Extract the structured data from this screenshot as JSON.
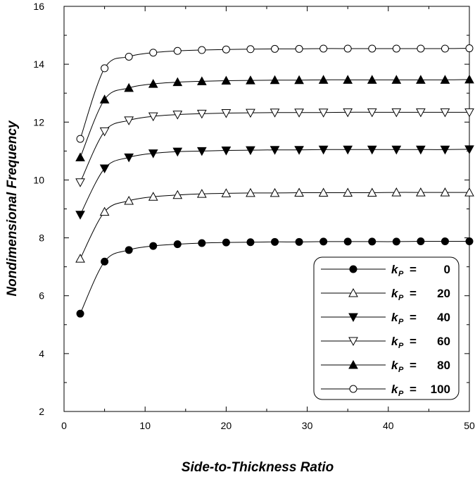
{
  "chart_data": {
    "type": "line",
    "title": "",
    "xlabel": "Side-to-Thickness  Ratio",
    "ylabel": "Nondimensional  Frequency",
    "xlim": [
      0,
      50
    ],
    "ylim": [
      2,
      16
    ],
    "x_ticks": [
      "0",
      "10",
      "20",
      "30",
      "40",
      "50"
    ],
    "y_ticks": [
      "2",
      "4",
      "6",
      "8",
      "10",
      "12",
      "14",
      "16"
    ],
    "grid": false,
    "legend_position": "bottom-right",
    "legend_symbol": "k",
    "legend_subscript": "P",
    "legend_equals": "=",
    "x": [
      2,
      5,
      8,
      11,
      14,
      17,
      20,
      23,
      26,
      29,
      32,
      35,
      38,
      41,
      44,
      47,
      50
    ],
    "series": [
      {
        "name": "0",
        "marker": "circle-filled",
        "values": [
          5.38,
          7.18,
          7.58,
          7.72,
          7.78,
          7.82,
          7.84,
          7.85,
          7.86,
          7.86,
          7.87,
          7.87,
          7.87,
          7.87,
          7.88,
          7.88,
          7.88
        ]
      },
      {
        "name": "20",
        "marker": "triangle-up-open",
        "values": [
          7.28,
          8.9,
          9.28,
          9.42,
          9.48,
          9.52,
          9.54,
          9.55,
          9.55,
          9.56,
          9.56,
          9.56,
          9.56,
          9.57,
          9.57,
          9.57,
          9.57
        ]
      },
      {
        "name": "40",
        "marker": "triangle-down-filled",
        "values": [
          8.8,
          10.4,
          10.78,
          10.92,
          10.98,
          11.0,
          11.02,
          11.03,
          11.04,
          11.04,
          11.05,
          11.05,
          11.05,
          11.05,
          11.05,
          11.05,
          11.06
        ]
      },
      {
        "name": "60",
        "marker": "triangle-down-open",
        "values": [
          9.92,
          11.68,
          12.06,
          12.2,
          12.26,
          12.29,
          12.31,
          12.32,
          12.33,
          12.33,
          12.33,
          12.34,
          12.34,
          12.34,
          12.34,
          12.34,
          12.34
        ]
      },
      {
        "name": "80",
        "marker": "triangle-up-filled",
        "values": [
          10.78,
          12.78,
          13.18,
          13.32,
          13.38,
          13.41,
          13.43,
          13.44,
          13.45,
          13.45,
          13.46,
          13.46,
          13.46,
          13.46,
          13.46,
          13.46,
          13.47
        ]
      },
      {
        "name": "100",
        "marker": "circle-open",
        "values": [
          11.42,
          13.86,
          14.26,
          14.4,
          14.46,
          14.49,
          14.51,
          14.52,
          14.53,
          14.53,
          14.54,
          14.54,
          14.54,
          14.54,
          14.54,
          14.54,
          14.55
        ]
      }
    ]
  }
}
